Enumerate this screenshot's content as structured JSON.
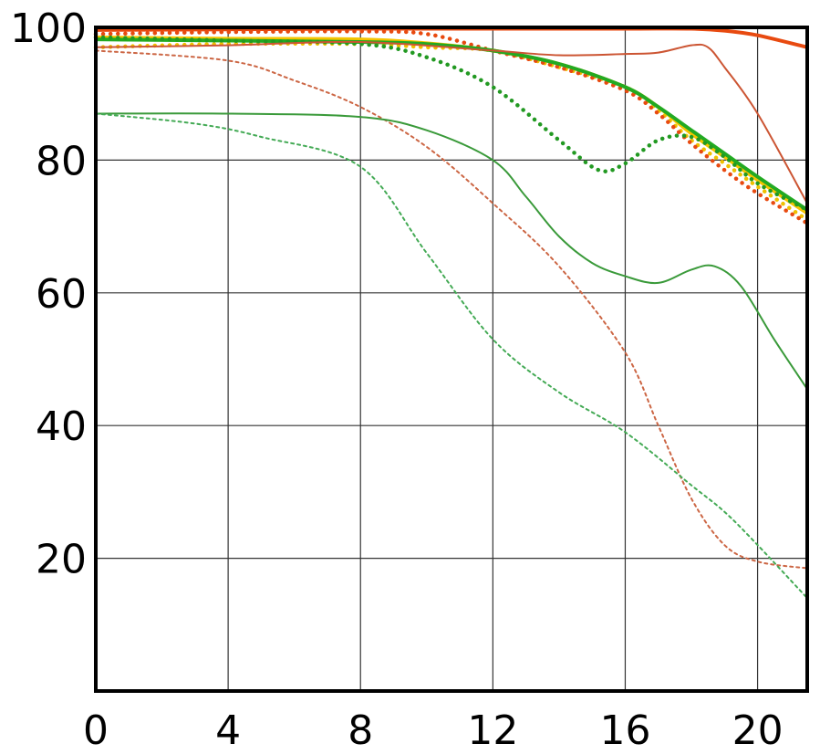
{
  "chart_data": {
    "type": "line",
    "title": "",
    "xlabel": "",
    "ylabel": "",
    "xlim": [
      0,
      21.5
    ],
    "ylim": [
      0,
      100
    ],
    "grid": true,
    "legend": "none",
    "x_ticks": [
      "0",
      "4",
      "8",
      "12",
      "16",
      "20"
    ],
    "y_ticks": [
      "20",
      "40",
      "60",
      "80",
      "100"
    ],
    "x_tick_values": [
      0,
      4,
      8,
      12,
      16,
      20
    ],
    "y_tick_values": [
      20,
      40,
      60,
      80,
      100
    ],
    "series": [
      {
        "color": "#f5c400",
        "style": "solid",
        "weight": "thick",
        "points": [
          [
            0,
            98.5
          ],
          [
            4,
            98.3
          ],
          [
            8,
            98.2
          ],
          [
            10,
            97.6
          ],
          [
            12,
            96.5
          ],
          [
            14,
            94.5
          ],
          [
            16,
            91.0
          ],
          [
            17,
            88.0
          ],
          [
            18,
            84.0
          ],
          [
            19,
            80.5
          ],
          [
            20,
            77.0
          ],
          [
            21.5,
            72.0
          ]
        ]
      },
      {
        "color": "#f0c000",
        "style": "dotted",
        "weight": "thick",
        "points": [
          [
            0,
            97.0
          ],
          [
            4,
            97.5
          ],
          [
            8,
            97.5
          ],
          [
            10,
            97.0
          ],
          [
            12,
            96.5
          ],
          [
            14,
            94.0
          ],
          [
            16,
            91.0
          ],
          [
            17,
            87.5
          ],
          [
            18,
            83.0
          ],
          [
            19,
            79.5
          ],
          [
            20,
            76.0
          ],
          [
            21.5,
            71.0
          ]
        ]
      },
      {
        "color": "#e84a10",
        "style": "solid",
        "weight": "thick",
        "points": [
          [
            0,
            99.6
          ],
          [
            4,
            99.7
          ],
          [
            8,
            99.8
          ],
          [
            12,
            99.8
          ],
          [
            16,
            99.8
          ],
          [
            18,
            99.8
          ],
          [
            19,
            99.5
          ],
          [
            20,
            98.8
          ],
          [
            21.5,
            97.0
          ]
        ]
      },
      {
        "color": "#e84a10",
        "style": "dotted",
        "weight": "thick",
        "points": [
          [
            0,
            99.0
          ],
          [
            4,
            99.3
          ],
          [
            8,
            99.4
          ],
          [
            10,
            99.0
          ],
          [
            12,
            96.5
          ],
          [
            14,
            94.0
          ],
          [
            16,
            90.5
          ],
          [
            17,
            87.0
          ],
          [
            18,
            82.5
          ],
          [
            19,
            78.5
          ],
          [
            20,
            75.0
          ],
          [
            21.5,
            70.5
          ]
        ]
      },
      {
        "color": "#22aa22",
        "style": "solid",
        "weight": "thick",
        "points": [
          [
            0,
            98.2
          ],
          [
            4,
            98.0
          ],
          [
            8,
            97.8
          ],
          [
            10,
            97.5
          ],
          [
            12,
            96.5
          ],
          [
            14,
            94.5
          ],
          [
            16,
            91.0
          ],
          [
            17,
            88.0
          ],
          [
            18,
            84.5
          ],
          [
            19,
            81.0
          ],
          [
            20,
            77.5
          ],
          [
            21.5,
            72.5
          ]
        ]
      },
      {
        "color": "#229922",
        "style": "dotted",
        "weight": "thick",
        "points": [
          [
            0,
            98.5
          ],
          [
            4,
            98.0
          ],
          [
            8,
            97.5
          ],
          [
            10,
            95.5
          ],
          [
            12,
            91.0
          ],
          [
            14,
            83.0
          ],
          [
            15.2,
            78.5
          ],
          [
            16,
            79.5
          ],
          [
            17,
            83.0
          ],
          [
            18,
            83.5
          ],
          [
            19,
            80.5
          ],
          [
            20,
            76.5
          ],
          [
            21.5,
            72.5
          ]
        ]
      },
      {
        "color": "#cc5533",
        "style": "solid",
        "weight": "thin",
        "points": [
          [
            0,
            97.0
          ],
          [
            4,
            97.3
          ],
          [
            8,
            97.8
          ],
          [
            12,
            96.5
          ],
          [
            14,
            95.8
          ],
          [
            16,
            96.0
          ],
          [
            17,
            96.2
          ],
          [
            18,
            97.3
          ],
          [
            18.5,
            97.0
          ],
          [
            19,
            94.0
          ],
          [
            20,
            87.0
          ],
          [
            21.5,
            73.5
          ]
        ]
      },
      {
        "color": "#cc6644",
        "style": "dotted",
        "weight": "thin",
        "points": [
          [
            0,
            96.5
          ],
          [
            4,
            95.0
          ],
          [
            6,
            92.0
          ],
          [
            8,
            88.0
          ],
          [
            10,
            82.0
          ],
          [
            12,
            73.5
          ],
          [
            14,
            64.0
          ],
          [
            16,
            51.0
          ],
          [
            17,
            40.0
          ],
          [
            18,
            29.0
          ],
          [
            19,
            22.0
          ],
          [
            20,
            19.5
          ],
          [
            21.5,
            18.5
          ]
        ]
      },
      {
        "color": "#3a9a3a",
        "style": "solid",
        "weight": "thin",
        "points": [
          [
            0,
            87.0
          ],
          [
            4,
            87.0
          ],
          [
            8,
            86.5
          ],
          [
            10,
            84.5
          ],
          [
            12,
            80.0
          ],
          [
            13,
            74.5
          ],
          [
            14,
            68.5
          ],
          [
            15,
            64.5
          ],
          [
            16,
            62.5
          ],
          [
            17,
            61.5
          ],
          [
            18,
            63.5
          ],
          [
            18.7,
            64.0
          ],
          [
            19.5,
            61.0
          ],
          [
            20.5,
            53.0
          ],
          [
            21.5,
            45.5
          ]
        ]
      },
      {
        "color": "#44aa55",
        "style": "dotted",
        "weight": "thin",
        "points": [
          [
            0,
            87.0
          ],
          [
            3,
            85.5
          ],
          [
            5,
            83.5
          ],
          [
            8,
            79.0
          ],
          [
            10,
            66.0
          ],
          [
            12,
            53.0
          ],
          [
            14,
            45.0
          ],
          [
            16,
            39.0
          ],
          [
            18,
            31.0
          ],
          [
            19,
            27.0
          ],
          [
            20,
            22.0
          ],
          [
            21.5,
            14.0
          ]
        ]
      }
    ]
  }
}
